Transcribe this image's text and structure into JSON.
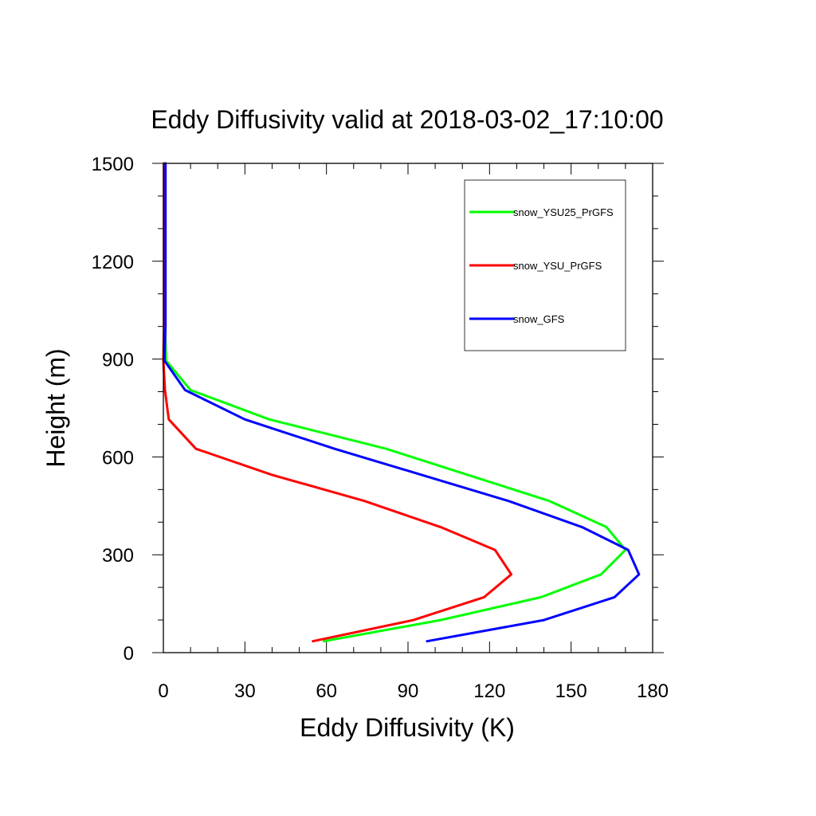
{
  "chart_data": {
    "type": "line",
    "title": "Eddy Diffusivity valid at 2018-03-02_17:10:00",
    "xlabel": "Eddy Diffusivity (K)",
    "ylabel": "Height (m)",
    "xlim": [
      0,
      180
    ],
    "ylim": [
      0,
      1500
    ],
    "x_ticks": [
      "0",
      "30",
      "60",
      "90",
      "120",
      "150",
      "180"
    ],
    "y_ticks": [
      "0",
      "300",
      "600",
      "900",
      "1200",
      "1500"
    ],
    "grid": false,
    "legend_position": "top-right",
    "series": [
      {
        "name": "snow_YSU25_PrGFS",
        "color": "#00ff00",
        "points": [
          [
            59,
            35
          ],
          [
            102,
            100
          ],
          [
            139,
            170
          ],
          [
            161,
            240
          ],
          [
            170,
            315
          ],
          [
            163,
            385
          ],
          [
            142,
            465
          ],
          [
            112,
            545
          ],
          [
            82,
            625
          ],
          [
            39,
            715
          ],
          [
            10,
            805
          ],
          [
            1,
            895
          ],
          [
            0.6,
            1000
          ],
          [
            0.6,
            1200
          ],
          [
            0.6,
            1500
          ]
        ]
      },
      {
        "name": "snow_YSU_PrGFS",
        "color": "#ff0000",
        "points": [
          [
            55,
            35
          ],
          [
            92,
            100
          ],
          [
            118,
            170
          ],
          [
            128,
            240
          ],
          [
            122,
            315
          ],
          [
            102,
            385
          ],
          [
            74,
            465
          ],
          [
            40,
            545
          ],
          [
            12,
            625
          ],
          [
            2,
            715
          ],
          [
            0.6,
            805
          ],
          [
            0,
            895
          ],
          [
            0.2,
            1000
          ],
          [
            0.2,
            1200
          ],
          [
            0.2,
            1500
          ]
        ]
      },
      {
        "name": "snow_GFS",
        "color": "#0000ff",
        "points": [
          [
            97,
            35
          ],
          [
            140,
            100
          ],
          [
            166,
            170
          ],
          [
            175,
            240
          ],
          [
            171,
            315
          ],
          [
            154,
            385
          ],
          [
            127,
            465
          ],
          [
            95,
            545
          ],
          [
            63,
            625
          ],
          [
            30,
            715
          ],
          [
            8,
            805
          ],
          [
            0.4,
            895
          ],
          [
            0.8,
            1000
          ],
          [
            0.8,
            1200
          ],
          [
            0.8,
            1500
          ]
        ]
      }
    ]
  }
}
